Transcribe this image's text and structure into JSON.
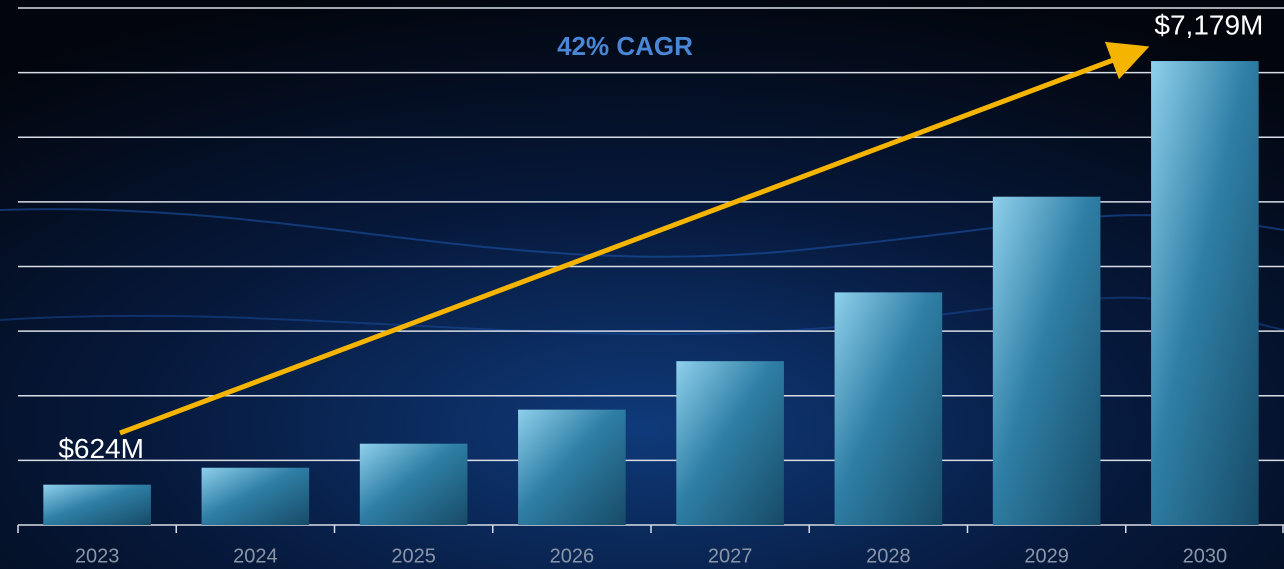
{
  "chart_data": {
    "type": "bar",
    "annotation": "42% CAGR",
    "categories": [
      "2023",
      "2024",
      "2025",
      "2026",
      "2027",
      "2028",
      "2029",
      "2030"
    ],
    "values": [
      624,
      886,
      1258,
      1785,
      2535,
      3600,
      5080,
      7179
    ],
    "value_labels": [
      "$624M",
      null,
      null,
      null,
      null,
      null,
      null,
      "$7,179M"
    ],
    "ylim": [
      0,
      8000
    ],
    "yticks": [
      0,
      1000,
      2000,
      3000,
      4000,
      5000,
      6000,
      7000,
      8000
    ],
    "grid": true
  }
}
